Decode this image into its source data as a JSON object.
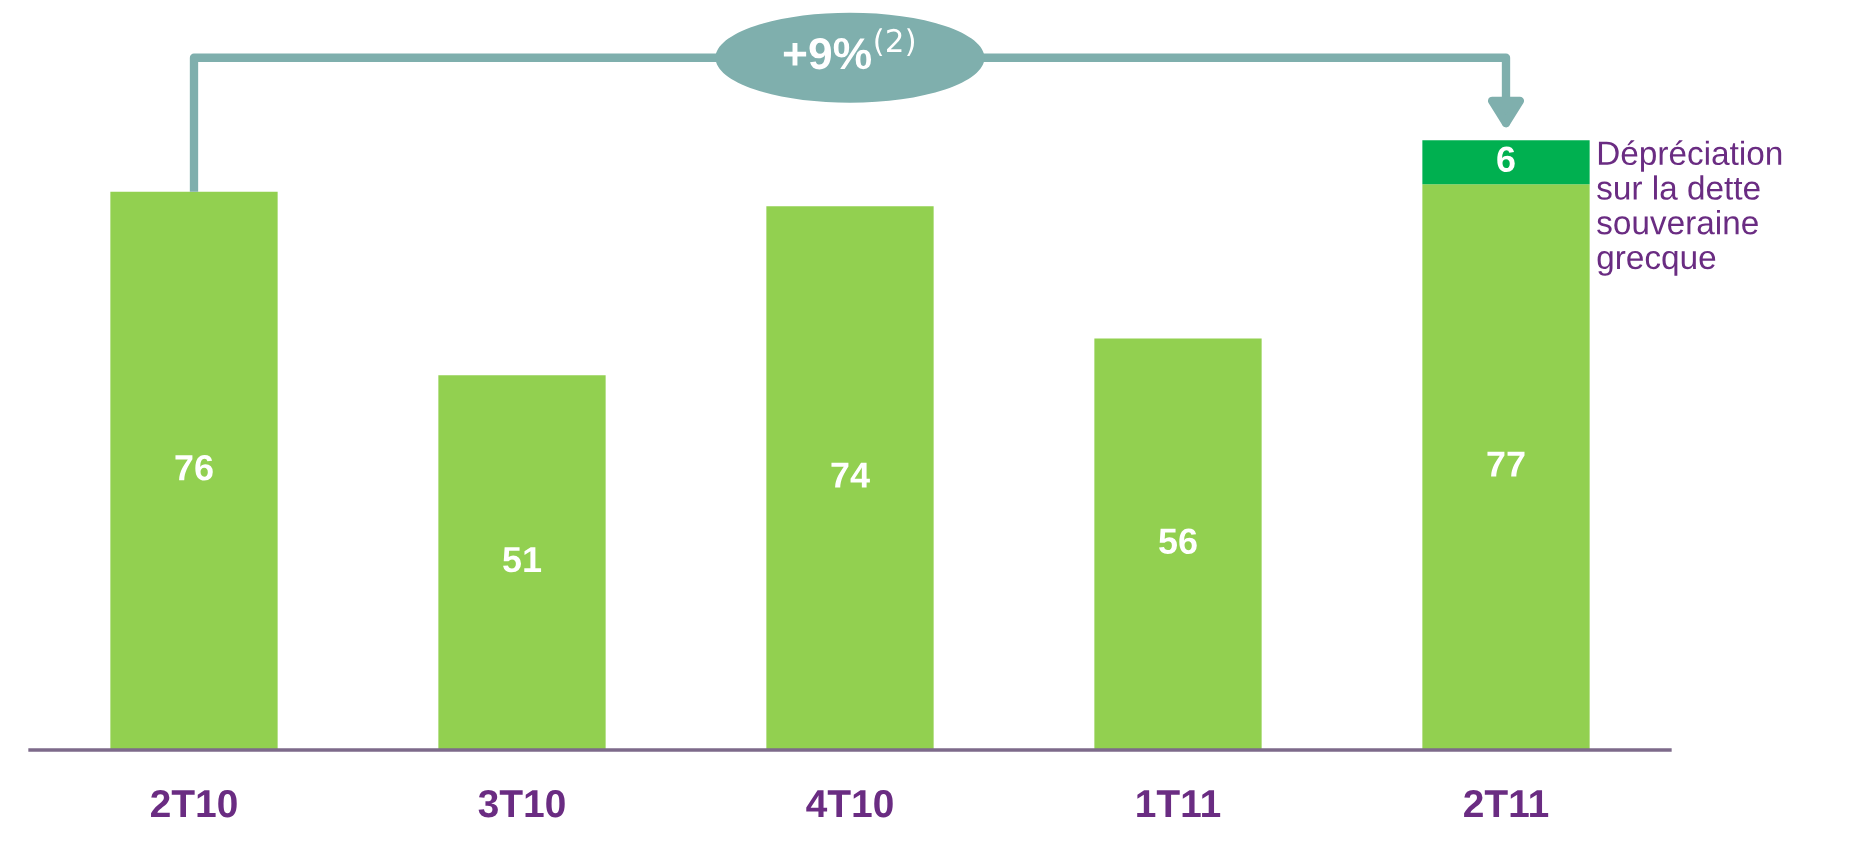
{
  "chart_data": {
    "type": "bar",
    "stacked": true,
    "data_labels": true,
    "categories": [
      "2T10",
      "3T10",
      "4T10",
      "1T11",
      "2T11"
    ],
    "series": [
      {
        "color": "#92d050",
        "values": [
          76,
          51,
          74,
          56,
          77
        ]
      },
      {
        "name": "Dépréciation\nsur la dette\nsouveraine\ngrecque",
        "color": "#00b050",
        "values": [
          null,
          null,
          null,
          null,
          6
        ]
      }
    ],
    "annotations": [
      "+9%$^{(2)}$"
    ],
    "grid": false,
    "legend": false
  }
}
